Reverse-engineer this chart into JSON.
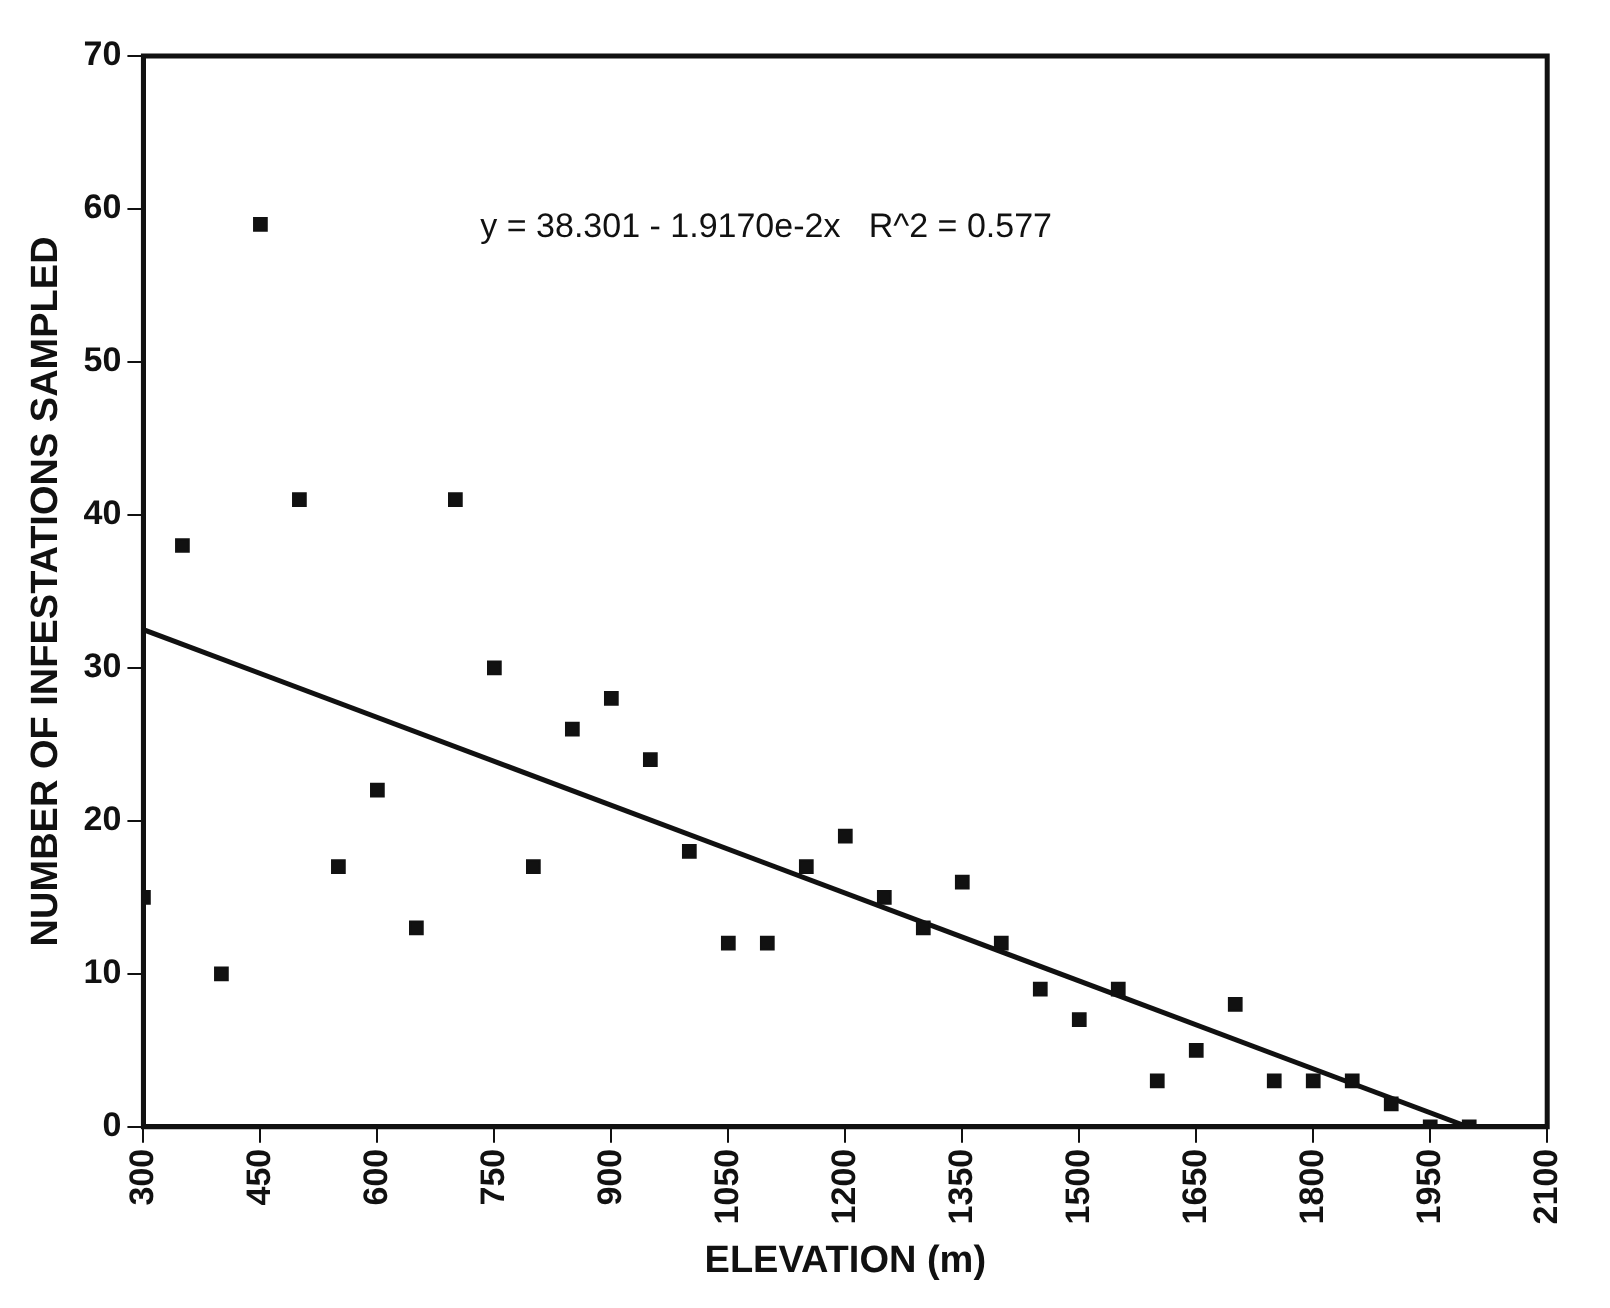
{
  "chart_data": {
    "type": "scatter",
    "xlabel": "ELEVATION (m)",
    "ylabel": "NUMBER OF INFESTATIONS SAMPLED",
    "annotations": [
      "y = 38.301 - 1.9170e-2x   R^2 = 0.577"
    ],
    "series": [
      {
        "marker": "square",
        "color": "#111111",
        "x": [
          300,
          350,
          400,
          450,
          500,
          550,
          600,
          650,
          700,
          750,
          800,
          850,
          900,
          950,
          1000,
          1050,
          1100,
          1150,
          1200,
          1250,
          1300,
          1350,
          1400,
          1450,
          1500,
          1550,
          1600,
          1650,
          1700,
          1750,
          1800,
          1850,
          1900,
          1950,
          2000
        ],
        "values": [
          15,
          38,
          10,
          59,
          41,
          17,
          22,
          13,
          41,
          30,
          17,
          26,
          28,
          24,
          18,
          12,
          12,
          17,
          19,
          15,
          13,
          16,
          12,
          9,
          7,
          9,
          3,
          5,
          8,
          3,
          3,
          3,
          1.5,
          0,
          0
        ]
      },
      {
        "type": "line",
        "color": "#111111",
        "x": [
          300,
          1998
        ],
        "values": [
          32.5,
          0
        ]
      }
    ],
    "xlim": [
      300,
      2100
    ],
    "xticks": [
      300,
      450,
      600,
      750,
      900,
      1050,
      1200,
      1350,
      1500,
      1650,
      1800,
      1950,
      2100
    ],
    "ylim": [
      0,
      70
    ],
    "yticks": [
      0,
      10,
      20,
      30,
      40,
      50,
      60,
      70
    ],
    "legend": false
  }
}
